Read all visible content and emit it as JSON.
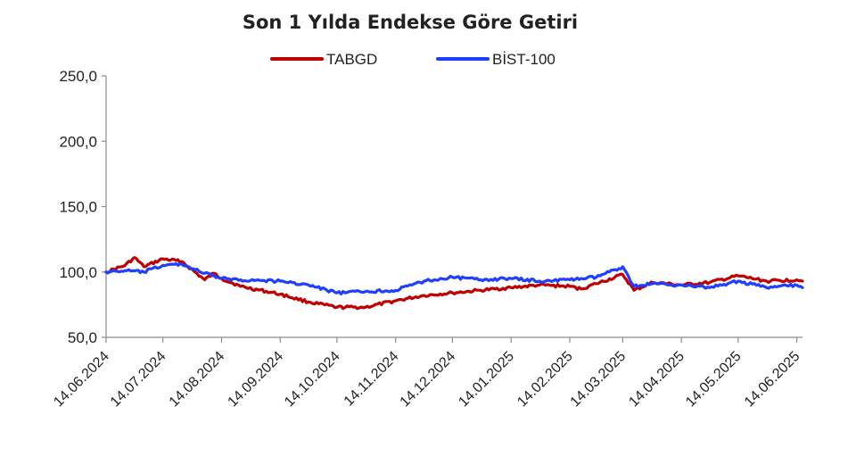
{
  "chart_data": {
    "type": "line",
    "title": "Son 1 Yılda Endekse Göre Getiri",
    "xlabel": "",
    "ylabel": "",
    "ylim": [
      50,
      250
    ],
    "yticks": [
      "50,0",
      "100,0",
      "150,0",
      "200,0",
      "250,0"
    ],
    "ytick_values": [
      50,
      100,
      150,
      200,
      250
    ],
    "x_ticks": [
      "14.06.2024",
      "14.07.2024",
      "14.08.2024",
      "14.09.2024",
      "14.10.2024",
      "14.11.2024",
      "14.12.2024",
      "14.01.2025",
      "14.02.2025",
      "14.03.2025",
      "14.04.2025",
      "14.05.2025",
      "14.06.2025"
    ],
    "x_end": "17.06.2025",
    "grid": false,
    "legend_position": "top",
    "series": [
      {
        "name": "TABGD",
        "color": "#c00000",
        "points": [
          [
            "14.06.2024",
            100
          ],
          [
            "24.06.2024",
            105
          ],
          [
            "29.06.2024",
            111
          ],
          [
            "04.07.2024",
            104
          ],
          [
            "14.07.2024",
            110
          ],
          [
            "24.07.2024",
            108
          ],
          [
            "05.08.2024",
            94
          ],
          [
            "10.08.2024",
            99
          ],
          [
            "14.08.2024",
            95
          ],
          [
            "24.08.2024",
            89
          ],
          [
            "14.09.2024",
            83
          ],
          [
            "29.09.2024",
            77
          ],
          [
            "14.10.2024",
            73
          ],
          [
            "29.10.2024",
            73
          ],
          [
            "14.11.2024",
            78
          ],
          [
            "29.11.2024",
            82
          ],
          [
            "14.12.2024",
            84
          ],
          [
            "29.12.2024",
            86
          ],
          [
            "14.01.2025",
            88
          ],
          [
            "29.01.2025",
            90
          ],
          [
            "14.02.2025",
            89
          ],
          [
            "20.02.2025",
            87
          ],
          [
            "28.02.2025",
            91
          ],
          [
            "14.03.2025",
            98
          ],
          [
            "20.03.2025",
            86
          ],
          [
            "30.03.2025",
            92
          ],
          [
            "14.04.2025",
            90
          ],
          [
            "29.04.2025",
            92
          ],
          [
            "14.05.2025",
            97
          ],
          [
            "29.05.2025",
            93
          ],
          [
            "14.06.2025",
            94
          ],
          [
            "17.06.2025",
            93
          ]
        ]
      },
      {
        "name": "BİST-100",
        "color": "#1f3fff",
        "points": [
          [
            "14.06.2024",
            100
          ],
          [
            "24.06.2024",
            101
          ],
          [
            "04.07.2024",
            100
          ],
          [
            "14.07.2024",
            105
          ],
          [
            "24.07.2024",
            106
          ],
          [
            "05.08.2024",
            99
          ],
          [
            "14.08.2024",
            95
          ],
          [
            "24.08.2024",
            94
          ],
          [
            "14.09.2024",
            93
          ],
          [
            "29.09.2024",
            90
          ],
          [
            "14.10.2024",
            84
          ],
          [
            "29.10.2024",
            85
          ],
          [
            "14.11.2024",
            86
          ],
          [
            "29.11.2024",
            93
          ],
          [
            "14.12.2024",
            96
          ],
          [
            "29.12.2024",
            94
          ],
          [
            "14.01.2025",
            95
          ],
          [
            "29.01.2025",
            93
          ],
          [
            "14.02.2025",
            94
          ],
          [
            "28.02.2025",
            96
          ],
          [
            "14.03.2025",
            104
          ],
          [
            "20.03.2025",
            89
          ],
          [
            "30.03.2025",
            91
          ],
          [
            "14.04.2025",
            90
          ],
          [
            "29.04.2025",
            88
          ],
          [
            "14.05.2025",
            93
          ],
          [
            "29.05.2025",
            88
          ],
          [
            "14.06.2025",
            90
          ],
          [
            "17.06.2025",
            88
          ]
        ]
      }
    ]
  }
}
